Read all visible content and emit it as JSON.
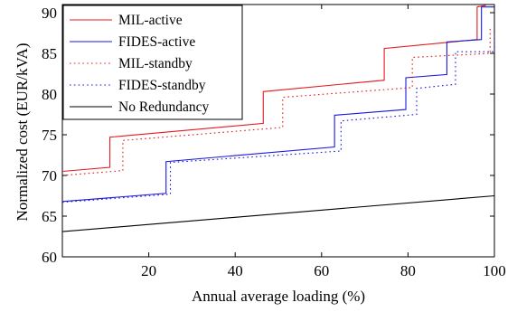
{
  "chart_data": {
    "type": "line",
    "xlabel": "Annual average loading (%)",
    "ylabel": "Normalized cost (EUR/kVA)",
    "xlim": [
      0,
      100
    ],
    "ylim": [
      60,
      91
    ],
    "xticks": [
      20,
      40,
      60,
      80,
      100
    ],
    "yticks": [
      60,
      65,
      70,
      75,
      80,
      85,
      90
    ],
    "grid": false,
    "legend_position": "top-left",
    "series": [
      {
        "name": "MIL-active",
        "color": "#e41a1c",
        "dash": "solid",
        "points": [
          [
            0,
            70.5
          ],
          [
            11,
            71.0
          ],
          [
            11,
            74.7
          ],
          [
            46.5,
            76.4
          ],
          [
            46.5,
            80.3
          ],
          [
            74.5,
            81.7
          ],
          [
            74.5,
            85.6
          ],
          [
            96,
            86.7
          ],
          [
            96,
            90.7
          ],
          [
            98,
            90.9
          ],
          [
            98,
            91.0
          ]
        ]
      },
      {
        "name": "FIDES-active",
        "color": "#1a1adb",
        "dash": "solid",
        "points": [
          [
            0,
            66.8
          ],
          [
            24,
            67.8
          ],
          [
            24,
            71.7
          ],
          [
            63,
            73.5
          ],
          [
            63,
            77.4
          ],
          [
            79.5,
            78.1
          ],
          [
            79.5,
            82.0
          ],
          [
            89,
            82.4
          ],
          [
            89,
            86.4
          ],
          [
            97,
            86.7
          ],
          [
            97,
            90.7
          ],
          [
            100,
            90.7
          ]
        ]
      },
      {
        "name": "MIL-standby",
        "color": "#e41a1c",
        "dash": "dotted",
        "points": [
          [
            0,
            70.0
          ],
          [
            14,
            70.6
          ],
          [
            14,
            74.3
          ],
          [
            51,
            75.9
          ],
          [
            51,
            79.6
          ],
          [
            81,
            80.8
          ],
          [
            81,
            84.5
          ],
          [
            99,
            85.0
          ],
          [
            99,
            88.3
          ]
        ]
      },
      {
        "name": "FIDES-standby",
        "color": "#1a1adb",
        "dash": "dotted",
        "points": [
          [
            0,
            66.7
          ],
          [
            25,
            67.7
          ],
          [
            25,
            71.6
          ],
          [
            64.5,
            73.0
          ],
          [
            64.5,
            76.7
          ],
          [
            82,
            77.5
          ],
          [
            82,
            80.7
          ],
          [
            91,
            81.2
          ],
          [
            91,
            85.2
          ],
          [
            100,
            85.2
          ],
          [
            100,
            87.5
          ]
        ]
      },
      {
        "name": "No Redundancy",
        "color": "#000000",
        "dash": "solid",
        "points": [
          [
            0,
            63.1
          ],
          [
            100,
            67.5
          ]
        ]
      }
    ]
  }
}
